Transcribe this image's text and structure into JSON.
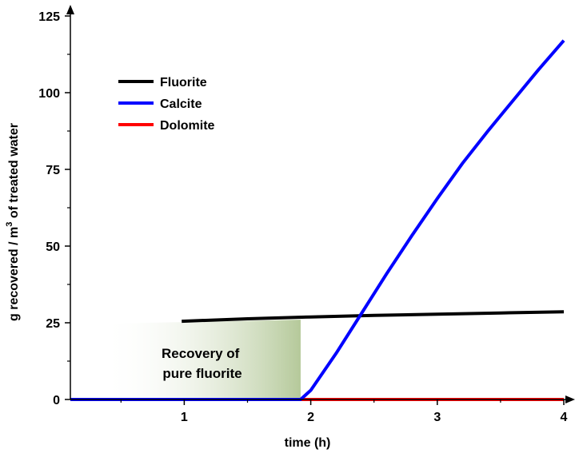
{
  "chart_data": {
    "type": "line",
    "xlabel": "time (h)",
    "ylabel_parts": {
      "pre": "g recovered / m",
      "sup": "3",
      "post": " of treated water"
    },
    "xlim": [
      0.1,
      4.0
    ],
    "ylim": [
      0,
      125
    ],
    "x_ticks": [
      1,
      2,
      3,
      4
    ],
    "y_ticks": [
      0,
      25,
      50,
      75,
      100,
      125
    ],
    "x_tick_labels": [
      "1",
      "2",
      "3",
      "4"
    ],
    "y_tick_labels": [
      "0",
      "25",
      "50",
      "75",
      "100",
      "125"
    ],
    "legend_position": "upper-left",
    "series": [
      {
        "name": "Fluorite",
        "color": "#000000",
        "x": [
          0.98,
          1.5,
          2.0,
          2.5,
          3.0,
          3.5,
          4.0
        ],
        "y": [
          25.5,
          26.3,
          26.9,
          27.4,
          27.8,
          28.2,
          28.6
        ]
      },
      {
        "name": "Calcite",
        "color": "#0000ff",
        "x": [
          0.1,
          1.92,
          2.0,
          2.2,
          2.4,
          2.6,
          2.8,
          3.0,
          3.2,
          3.4,
          3.6,
          3.8,
          4.0
        ],
        "y": [
          0,
          0,
          3,
          15,
          28,
          41,
          53.5,
          65.5,
          77,
          87.5,
          97.5,
          107.5,
          117
        ]
      },
      {
        "name": "Dolomite",
        "color": "#ff0000",
        "x": [
          1.92,
          4.0
        ],
        "y": [
          0,
          0
        ]
      }
    ],
    "annotation": {
      "lines": [
        "Recovery of",
        "pure fluorite"
      ],
      "shade_x": [
        0.35,
        1.92
      ],
      "shade_y": [
        0,
        26
      ],
      "shade_color": "#b5c99a"
    }
  }
}
